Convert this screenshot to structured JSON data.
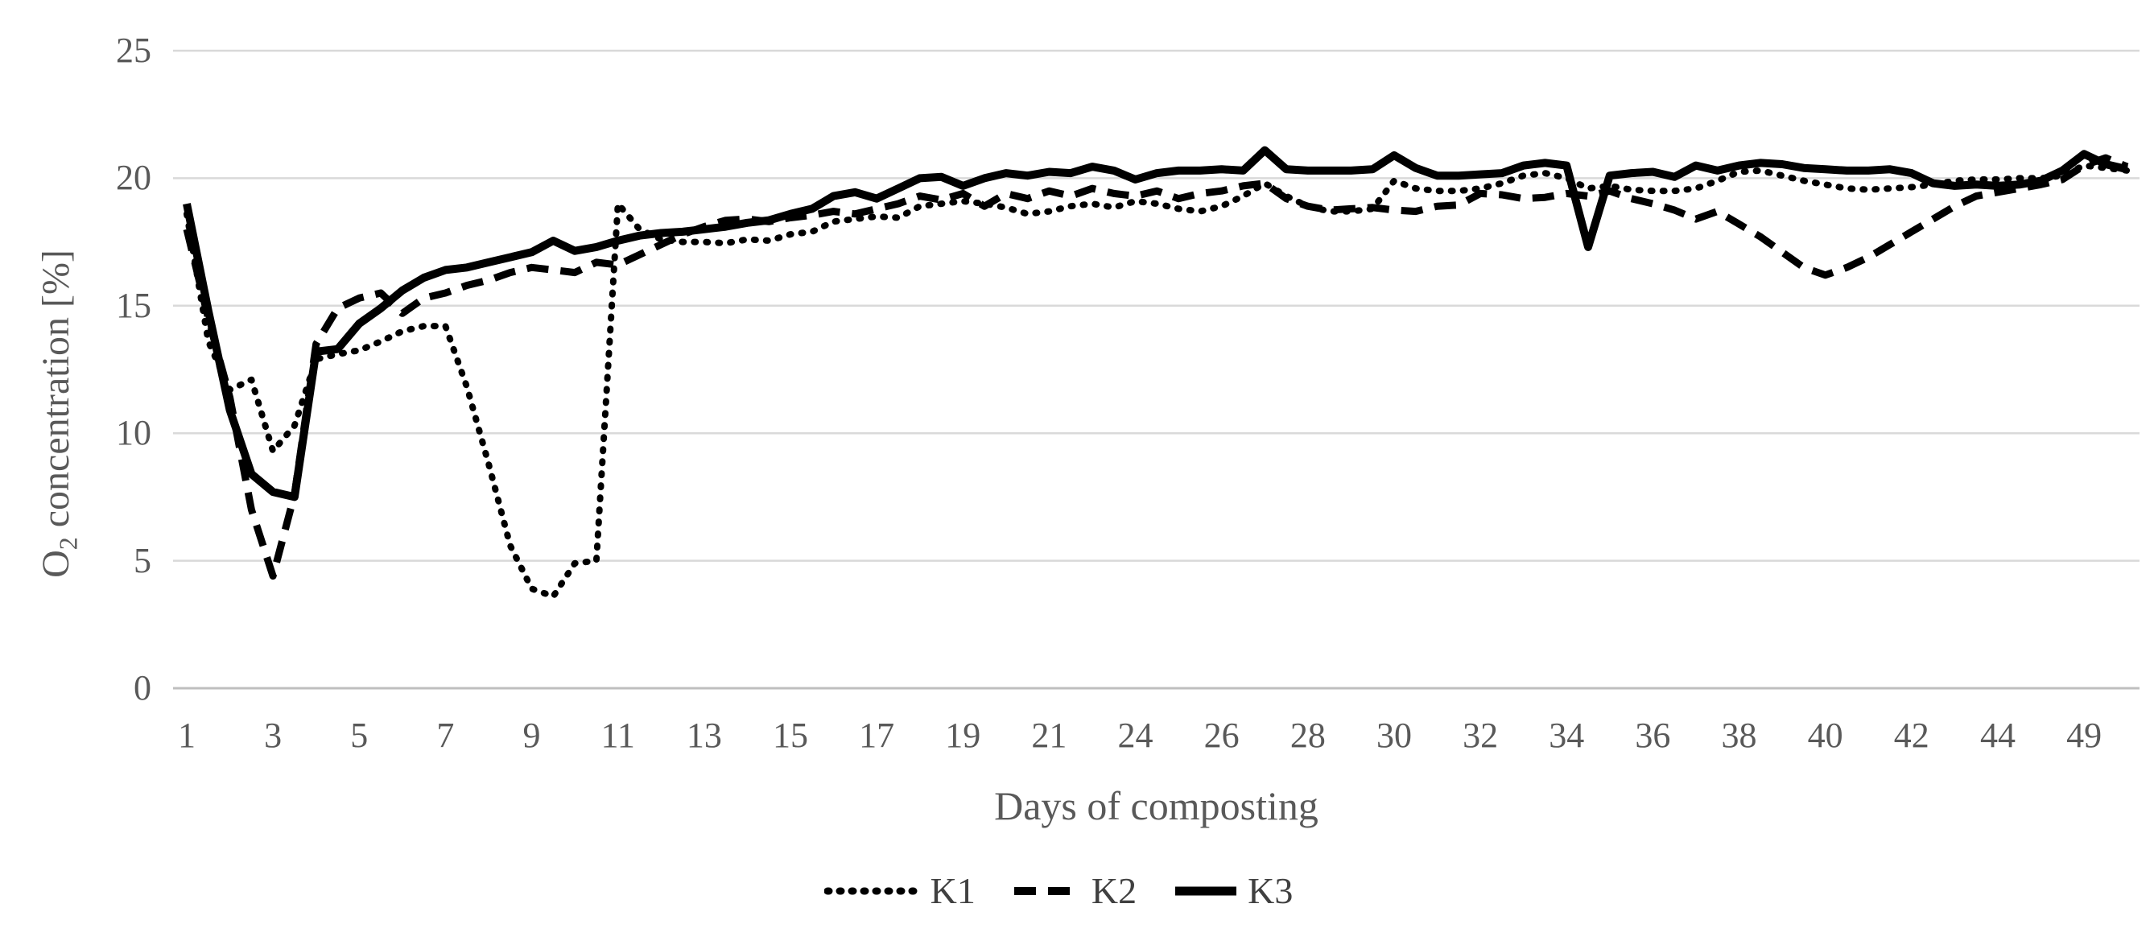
{
  "chart_data": {
    "type": "line",
    "title": "",
    "xlabel": "Days of composting",
    "ylabel": {
      "pre": "O",
      "sub": "2",
      "post": " concentration [%]"
    },
    "ylim": [
      0,
      25
    ],
    "yticks": [
      0,
      5,
      10,
      15,
      20,
      25
    ],
    "grid": "horizontal",
    "legend_position": "bottom-center",
    "x_axis": {
      "tick_positions": [
        1,
        3,
        5,
        7,
        9,
        11,
        13,
        15,
        17,
        19,
        21,
        23,
        25,
        27,
        29,
        31,
        33,
        35,
        37,
        39,
        41,
        43,
        45
      ],
      "tick_labels": [
        "1",
        "3",
        "5",
        "7",
        "9",
        "11",
        "13",
        "15",
        "17",
        "19",
        "21",
        "24",
        "26",
        "28",
        "30",
        "32",
        "34",
        "36",
        "38",
        "40",
        "42",
        "44",
        "49"
      ]
    },
    "colors": {
      "line": "#000000",
      "grid": "#d9d9d9",
      "axis": "#bfbfbf",
      "text": "#595959"
    },
    "series": [
      {
        "name": "K1",
        "style": "dotted",
        "points": [
          [
            1,
            18.6
          ],
          [
            1.5,
            13.6
          ],
          [
            2,
            11.7
          ],
          [
            2.5,
            12.1
          ],
          [
            3,
            9.3
          ],
          [
            3.5,
            10.3
          ],
          [
            4,
            12.9
          ],
          [
            4.5,
            13.1
          ],
          [
            5,
            13.25
          ],
          [
            5.5,
            13.6
          ],
          [
            6,
            14.0
          ],
          [
            6.5,
            14.2
          ],
          [
            7,
            14.2
          ],
          [
            7.5,
            11.8
          ],
          [
            8,
            8.8
          ],
          [
            8.5,
            5.6
          ],
          [
            9,
            3.9
          ],
          [
            9.5,
            3.6
          ],
          [
            10,
            4.9
          ],
          [
            10.5,
            5.0
          ],
          [
            11,
            19.0
          ],
          [
            11.5,
            18.0
          ],
          [
            12,
            17.6
          ],
          [
            12.5,
            17.5
          ],
          [
            13,
            17.5
          ],
          [
            13.5,
            17.45
          ],
          [
            14,
            17.6
          ],
          [
            14.5,
            17.55
          ],
          [
            15,
            17.8
          ],
          [
            15.5,
            17.9
          ],
          [
            16,
            18.3
          ],
          [
            16.5,
            18.4
          ],
          [
            17,
            18.5
          ],
          [
            17.5,
            18.45
          ],
          [
            18,
            18.9
          ],
          [
            18.5,
            19.0
          ],
          [
            19,
            19.1
          ],
          [
            19.5,
            19.0
          ],
          [
            20,
            18.85
          ],
          [
            20.5,
            18.6
          ],
          [
            21,
            18.7
          ],
          [
            21.5,
            18.9
          ],
          [
            22,
            19.0
          ],
          [
            22.5,
            18.85
          ],
          [
            23,
            19.1
          ],
          [
            23.5,
            19.0
          ],
          [
            24,
            18.8
          ],
          [
            24.5,
            18.7
          ],
          [
            25,
            18.9
          ],
          [
            25.5,
            19.3
          ],
          [
            26,
            19.8
          ],
          [
            26.5,
            19.3
          ],
          [
            27,
            18.9
          ],
          [
            27.5,
            18.7
          ],
          [
            28,
            18.7
          ],
          [
            28.5,
            18.8
          ],
          [
            29,
            19.9
          ],
          [
            29.5,
            19.6
          ],
          [
            30,
            19.5
          ],
          [
            30.5,
            19.5
          ],
          [
            31,
            19.6
          ],
          [
            31.5,
            19.8
          ],
          [
            32,
            20.1
          ],
          [
            32.5,
            20.2
          ],
          [
            33,
            20.0
          ],
          [
            33.5,
            19.6
          ],
          [
            34,
            19.7
          ],
          [
            34.5,
            19.55
          ],
          [
            35,
            19.5
          ],
          [
            35.5,
            19.5
          ],
          [
            36,
            19.6
          ],
          [
            36.5,
            19.9
          ],
          [
            37,
            20.25
          ],
          [
            37.5,
            20.3
          ],
          [
            38,
            20.1
          ],
          [
            38.5,
            19.9
          ],
          [
            39,
            19.75
          ],
          [
            39.5,
            19.6
          ],
          [
            40,
            19.55
          ],
          [
            40.5,
            19.6
          ],
          [
            41,
            19.65
          ],
          [
            41.5,
            19.75
          ],
          [
            42,
            19.9
          ],
          [
            42.5,
            19.95
          ],
          [
            43,
            19.95
          ],
          [
            43.5,
            20.0
          ],
          [
            44,
            20.0
          ],
          [
            44.5,
            20.1
          ],
          [
            45,
            20.5
          ],
          [
            45.5,
            20.4
          ],
          [
            46,
            20.3
          ]
        ]
      },
      {
        "name": "K2",
        "style": "dashed",
        "points": [
          [
            1,
            18.0
          ],
          [
            1.5,
            14.5
          ],
          [
            2,
            11.4
          ],
          [
            2.5,
            7.0
          ],
          [
            3,
            4.4
          ],
          [
            3.5,
            7.6
          ],
          [
            4,
            13.5
          ],
          [
            4.5,
            14.9
          ],
          [
            5,
            15.3
          ],
          [
            5.5,
            15.5
          ],
          [
            6,
            14.7
          ],
          [
            6.5,
            15.3
          ],
          [
            7,
            15.5
          ],
          [
            7.5,
            15.8
          ],
          [
            8,
            16.0
          ],
          [
            8.5,
            16.3
          ],
          [
            9,
            16.5
          ],
          [
            9.5,
            16.4
          ],
          [
            10,
            16.3
          ],
          [
            10.5,
            16.7
          ],
          [
            11,
            16.6
          ],
          [
            11.5,
            17.0
          ],
          [
            12,
            17.4
          ],
          [
            12.5,
            17.8
          ],
          [
            13,
            18.1
          ],
          [
            13.5,
            18.35
          ],
          [
            14,
            18.4
          ],
          [
            14.5,
            18.3
          ],
          [
            15,
            18.45
          ],
          [
            15.5,
            18.55
          ],
          [
            16,
            18.7
          ],
          [
            16.5,
            18.6
          ],
          [
            17,
            18.8
          ],
          [
            17.5,
            19.0
          ],
          [
            18,
            19.3
          ],
          [
            18.5,
            19.15
          ],
          [
            19,
            19.4
          ],
          [
            19.5,
            18.9
          ],
          [
            20,
            19.4
          ],
          [
            20.5,
            19.2
          ],
          [
            21,
            19.5
          ],
          [
            21.5,
            19.3
          ],
          [
            22,
            19.6
          ],
          [
            22.5,
            19.4
          ],
          [
            23,
            19.3
          ],
          [
            23.5,
            19.5
          ],
          [
            24,
            19.2
          ],
          [
            24.5,
            19.4
          ],
          [
            25,
            19.5
          ],
          [
            25.5,
            19.7
          ],
          [
            26,
            19.8
          ],
          [
            26.5,
            19.2
          ],
          [
            27,
            18.9
          ],
          [
            27.5,
            18.75
          ],
          [
            28,
            18.8
          ],
          [
            28.5,
            18.85
          ],
          [
            29,
            18.75
          ],
          [
            29.5,
            18.7
          ],
          [
            30,
            18.9
          ],
          [
            30.5,
            18.95
          ],
          [
            31,
            19.4
          ],
          [
            31.5,
            19.35
          ],
          [
            32,
            19.2
          ],
          [
            32.5,
            19.25
          ],
          [
            33,
            19.4
          ],
          [
            33.5,
            19.3
          ],
          [
            34,
            19.5
          ],
          [
            34.5,
            19.2
          ],
          [
            35,
            19.0
          ],
          [
            35.5,
            18.75
          ],
          [
            36,
            18.4
          ],
          [
            36.5,
            18.7
          ],
          [
            37,
            18.2
          ],
          [
            37.5,
            17.7
          ],
          [
            38,
            17.1
          ],
          [
            38.5,
            16.5
          ],
          [
            39,
            16.2
          ],
          [
            39.5,
            16.5
          ],
          [
            40,
            16.9
          ],
          [
            40.5,
            17.4
          ],
          [
            41,
            17.9
          ],
          [
            41.5,
            18.4
          ],
          [
            42,
            18.9
          ],
          [
            42.5,
            19.3
          ],
          [
            43,
            19.45
          ],
          [
            43.5,
            19.6
          ],
          [
            44,
            19.75
          ],
          [
            44.5,
            19.95
          ],
          [
            45,
            20.5
          ],
          [
            45.5,
            20.8
          ],
          [
            46,
            20.45
          ]
        ]
      },
      {
        "name": "K3",
        "style": "solid",
        "points": [
          [
            1,
            19.0
          ],
          [
            1.5,
            14.8
          ],
          [
            2,
            10.9
          ],
          [
            2.5,
            8.4
          ],
          [
            3,
            7.7
          ],
          [
            3.5,
            7.5
          ],
          [
            4,
            13.2
          ],
          [
            4.5,
            13.3
          ],
          [
            5,
            14.3
          ],
          [
            5.5,
            14.9
          ],
          [
            6,
            15.6
          ],
          [
            6.5,
            16.1
          ],
          [
            7,
            16.4
          ],
          [
            7.5,
            16.5
          ],
          [
            8,
            16.7
          ],
          [
            8.5,
            16.9
          ],
          [
            9,
            17.1
          ],
          [
            9.5,
            17.55
          ],
          [
            10,
            17.15
          ],
          [
            10.5,
            17.3
          ],
          [
            11,
            17.55
          ],
          [
            11.5,
            17.75
          ],
          [
            12,
            17.85
          ],
          [
            12.5,
            17.9
          ],
          [
            13,
            18.0
          ],
          [
            13.5,
            18.1
          ],
          [
            14,
            18.25
          ],
          [
            14.5,
            18.35
          ],
          [
            15,
            18.6
          ],
          [
            15.5,
            18.8
          ],
          [
            16,
            19.3
          ],
          [
            16.5,
            19.45
          ],
          [
            17,
            19.2
          ],
          [
            17.5,
            19.6
          ],
          [
            18,
            20.0
          ],
          [
            18.5,
            20.05
          ],
          [
            19,
            19.7
          ],
          [
            19.5,
            20.0
          ],
          [
            20,
            20.2
          ],
          [
            20.5,
            20.1
          ],
          [
            21,
            20.25
          ],
          [
            21.5,
            20.2
          ],
          [
            22,
            20.45
          ],
          [
            22.5,
            20.3
          ],
          [
            23,
            19.95
          ],
          [
            23.5,
            20.2
          ],
          [
            24,
            20.3
          ],
          [
            24.5,
            20.3
          ],
          [
            25,
            20.35
          ],
          [
            25.5,
            20.3
          ],
          [
            26,
            21.1
          ],
          [
            26.5,
            20.35
          ],
          [
            27,
            20.3
          ],
          [
            27.5,
            20.3
          ],
          [
            28,
            20.3
          ],
          [
            28.5,
            20.35
          ],
          [
            29,
            20.9
          ],
          [
            29.5,
            20.4
          ],
          [
            30,
            20.1
          ],
          [
            30.5,
            20.1
          ],
          [
            31,
            20.15
          ],
          [
            31.5,
            20.2
          ],
          [
            32,
            20.5
          ],
          [
            32.5,
            20.6
          ],
          [
            33,
            20.5
          ],
          [
            33.5,
            17.3
          ],
          [
            34,
            20.1
          ],
          [
            34.5,
            20.2
          ],
          [
            35,
            20.25
          ],
          [
            35.5,
            20.05
          ],
          [
            36,
            20.5
          ],
          [
            36.5,
            20.3
          ],
          [
            37,
            20.5
          ],
          [
            37.5,
            20.6
          ],
          [
            38,
            20.55
          ],
          [
            38.5,
            20.4
          ],
          [
            39,
            20.35
          ],
          [
            39.5,
            20.3
          ],
          [
            40,
            20.3
          ],
          [
            40.5,
            20.35
          ],
          [
            41,
            20.2
          ],
          [
            41.5,
            19.8
          ],
          [
            42,
            19.7
          ],
          [
            42.5,
            19.75
          ],
          [
            43,
            19.7
          ],
          [
            43.5,
            19.75
          ],
          [
            44,
            19.9
          ],
          [
            44.5,
            20.3
          ],
          [
            45,
            20.95
          ],
          [
            45.5,
            20.55
          ],
          [
            46,
            20.35
          ]
        ]
      }
    ]
  }
}
